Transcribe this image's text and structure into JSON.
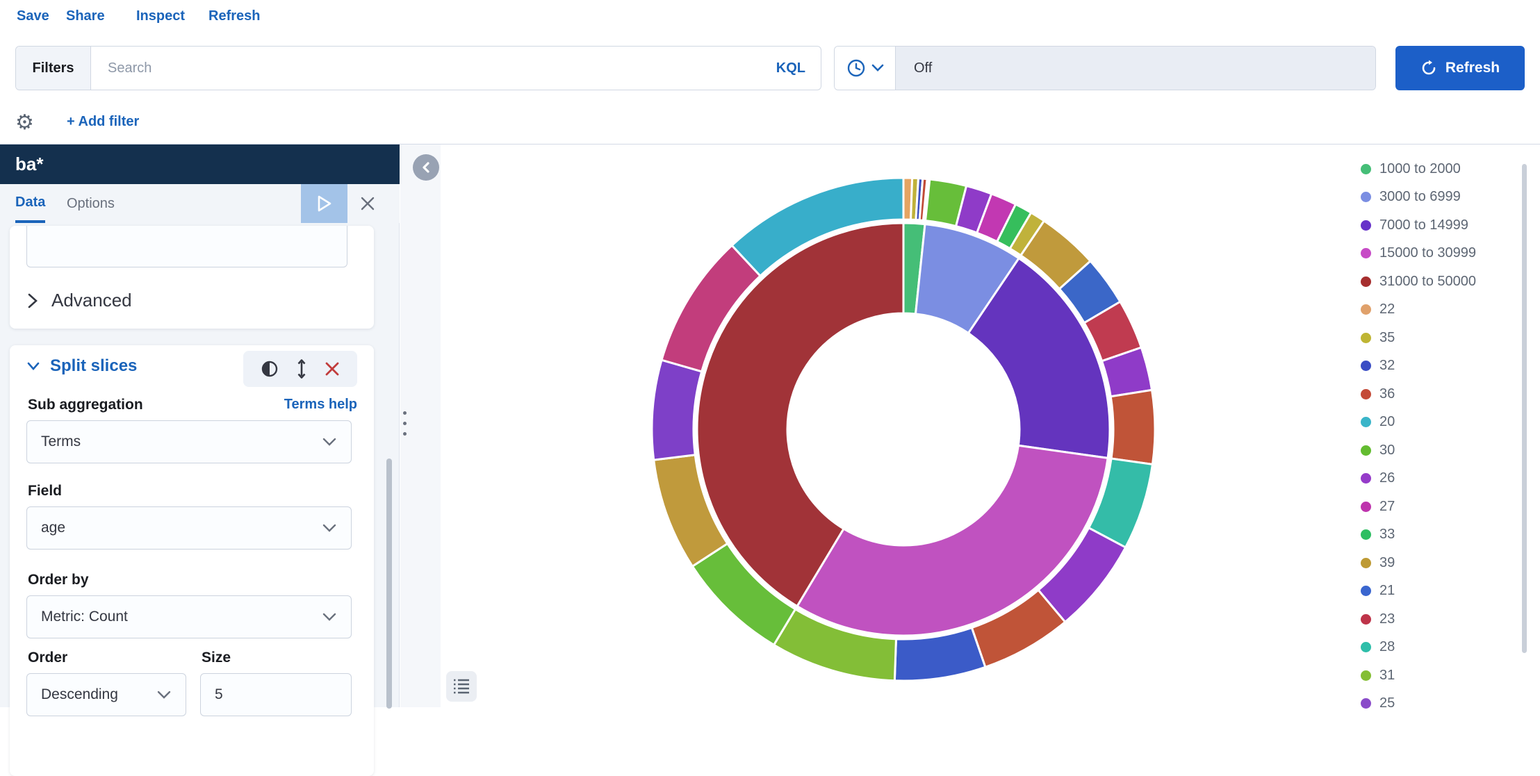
{
  "menu": {
    "items": [
      "Save",
      "Share",
      "Inspect",
      "Refresh"
    ]
  },
  "query_bar": {
    "filters_label": "Filters",
    "search_placeholder": "Search",
    "kql_label": "KQL",
    "time_value": "Off",
    "refresh_label": "Refresh"
  },
  "filter_bar": {
    "add_filter_label": "+ Add filter"
  },
  "editor": {
    "title": "ba*",
    "tabs": [
      {
        "label": "Data",
        "selected": true
      },
      {
        "label": "Options",
        "selected": false
      }
    ],
    "advanced_label": "Advanced",
    "split_slices": {
      "section_label": "Split slices",
      "sub_aggregation_label": "Sub aggregation",
      "terms_help_label": "Terms help",
      "aggregation_value": "Terms",
      "field_label": "Field",
      "field_value": "age",
      "order_by_label": "Order by",
      "order_by_value": "Metric: Count",
      "order_label": "Order",
      "order_value": "Descending",
      "size_label": "Size",
      "size_value": "5"
    }
  },
  "legend": {
    "items": [
      {
        "label": "1000 to 2000",
        "color": "#45be77"
      },
      {
        "label": "3000 to 6999",
        "color": "#7b8ee2"
      },
      {
        "label": "7000 to 14999",
        "color": "#6733c9"
      },
      {
        "label": "15000 to 30999",
        "color": "#c74bc6"
      },
      {
        "label": "31000 to 50000",
        "color": "#a62e2e"
      },
      {
        "label": "22",
        "color": "#e0a16b"
      },
      {
        "label": "35",
        "color": "#bfb534"
      },
      {
        "label": "32",
        "color": "#3a4dc4"
      },
      {
        "label": "36",
        "color": "#c44b38"
      },
      {
        "label": "20",
        "color": "#3ab5c9"
      },
      {
        "label": "30",
        "color": "#63bc30"
      },
      {
        "label": "26",
        "color": "#953bc9"
      },
      {
        "label": "27",
        "color": "#be34ad"
      },
      {
        "label": "33",
        "color": "#2ebe62"
      },
      {
        "label": "39",
        "color": "#be9a34"
      },
      {
        "label": "21",
        "color": "#3a66cf"
      },
      {
        "label": "23",
        "color": "#be3449"
      },
      {
        "label": "28",
        "color": "#2ebea9"
      },
      {
        "label": "31",
        "color": "#84be34"
      }
    ],
    "partial_item": {
      "label": "25",
      "color": "#8a4bc9"
    }
  },
  "chart_data": {
    "type": "pie",
    "variant": "donut-sunburst",
    "metric": "Count",
    "inner_ring_field": "balance ranges",
    "outer_ring_field": "age (Terms, size 5 per range)",
    "legend_position": "right",
    "angle_unit": "degrees clockwise from 12 o'clock, estimated from pixels",
    "inner": [
      {
        "label": "1000 to 2000",
        "color": "#45be77",
        "start": 0,
        "end": 6
      },
      {
        "label": "3000 to 6999",
        "color": "#7b8ee2",
        "start": 6,
        "end": 34
      },
      {
        "label": "7000 to 14999",
        "color": "#6434be",
        "start": 34,
        "end": 98
      },
      {
        "label": "15000 to 30999",
        "color": "#c052c0",
        "start": 98,
        "end": 211
      },
      {
        "label": "31000 to 50000",
        "color": "#a13338",
        "start": 211,
        "end": 360
      }
    ],
    "outer": [
      {
        "label": "22",
        "parent": "1000 to 2000",
        "color": "#e5a462",
        "start": 0,
        "end": 2
      },
      {
        "label": "35",
        "parent": "1000 to 2000",
        "color": "#c0b23b",
        "start": 2,
        "end": 3.4
      },
      {
        "label": "32",
        "parent": "1000 to 2000",
        "color": "#3c50c0",
        "start": 3.4,
        "end": 4.4
      },
      {
        "label": "36",
        "parent": "1000 to 2000",
        "color": "#c04a36",
        "start": 4.4,
        "end": 5.4
      },
      {
        "label": "30",
        "parent": "3000 to 6999",
        "color": "#67be3a",
        "start": 6,
        "end": 14.5
      },
      {
        "label": "26",
        "parent": "3000 to 6999",
        "color": "#8f3bc8",
        "start": 14.5,
        "end": 20.5
      },
      {
        "label": "27",
        "parent": "3000 to 6999",
        "color": "#c238b2",
        "start": 20.5,
        "end": 26.5
      },
      {
        "label": "33",
        "parent": "3000 to 6999",
        "color": "#36be5c",
        "start": 26.5,
        "end": 30.5
      },
      {
        "label": "35",
        "parent": "3000 to 6999",
        "color": "#c0b23b",
        "start": 30.5,
        "end": 34
      },
      {
        "label": "39",
        "parent": "7000 to 14999",
        "color": "#c09a3c",
        "start": 34,
        "end": 48
      },
      {
        "label": "21",
        "parent": "7000 to 14999",
        "color": "#3b67c8",
        "start": 48,
        "end": 59.5
      },
      {
        "label": "23",
        "parent": "7000 to 14999",
        "color": "#c03b50",
        "start": 59.5,
        "end": 71
      },
      {
        "label": "26",
        "parent": "7000 to 14999",
        "color": "#8f3bc8",
        "start": 71,
        "end": 81
      },
      {
        "label": "36",
        "parent": "7000 to 14999",
        "color": "#c05438",
        "start": 81,
        "end": 98
      },
      {
        "label": "28",
        "parent": "15000 to 30999",
        "color": "#34bca8",
        "start": 98,
        "end": 118
      },
      {
        "label": "26",
        "parent": "15000 to 30999",
        "color": "#8f3bc8",
        "start": 118,
        "end": 140
      },
      {
        "label": "36",
        "parent": "15000 to 30999",
        "color": "#c05438",
        "start": 140,
        "end": 161
      },
      {
        "label": "21",
        "parent": "15000 to 30999",
        "color": "#3b5bc8",
        "start": 161,
        "end": 182
      },
      {
        "label": "31",
        "parent": "15000 to 30999",
        "color": "#83be37",
        "start": 182,
        "end": 211
      },
      {
        "label": "30",
        "parent": "31000 to 50000",
        "color": "#67be3a",
        "start": 211,
        "end": 237
      },
      {
        "label": "39",
        "parent": "31000 to 50000",
        "color": "#c09a3c",
        "start": 237,
        "end": 263
      },
      {
        "label": "26",
        "parent": "31000 to 50000",
        "color": "#7e40c8",
        "start": 263,
        "end": 286
      },
      {
        "label": "27",
        "parent": "31000 to 50000",
        "color": "#c23d7c",
        "start": 286,
        "end": 317
      },
      {
        "label": "20",
        "parent": "31000 to 50000",
        "color": "#38aeca",
        "start": 317,
        "end": 360
      }
    ],
    "geometry": {
      "center": [
        370,
        370
      ],
      "hole_r": 167,
      "inner_r": [
        167,
        297
      ],
      "outer_r": [
        302,
        362
      ]
    }
  }
}
